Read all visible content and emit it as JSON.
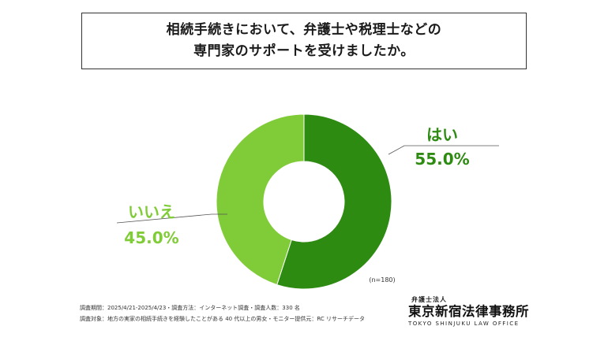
{
  "title": {
    "line1": "相続手続きにおいて、弁護士や税理士などの",
    "line2": "専門家のサポートを受けましたか。"
  },
  "chart_data": {
    "type": "pie",
    "variant": "donut",
    "slices": [
      {
        "label": "はい",
        "value": 55.0,
        "value_label": "55.0%",
        "color": "#2e8b12"
      },
      {
        "label": "いいえ",
        "value": 45.0,
        "value_label": "45.0%",
        "color": "#80cc38"
      }
    ],
    "sample_note": "(n=180)"
  },
  "footer": {
    "period_line": "調査期間：2025/4/21-2025/4/23・調査方法：インターネット調査・調査人数：330 名",
    "target_line": "調査対象：地方の実家の相続手続きを経験したことがある 40 代以上の男女・モニター提供元：RC リサーチデータ"
  },
  "logo": {
    "sub": "弁護士法人",
    "main": "東京新宿法律事務所",
    "english": "TOKYO SHINJUKU LAW OFFICE"
  }
}
